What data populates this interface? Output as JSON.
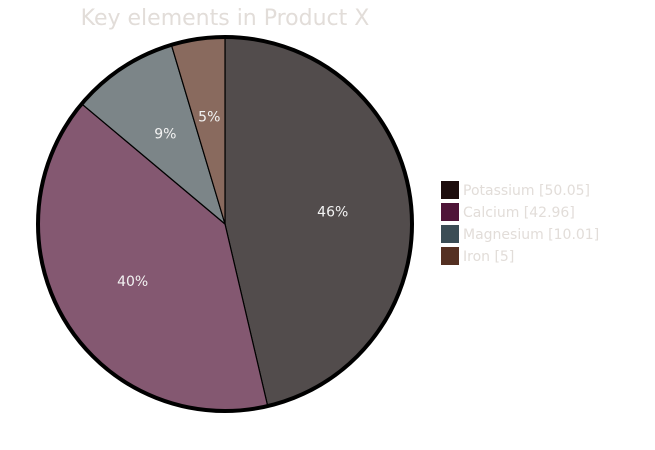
{
  "chart_data": {
    "type": "pie",
    "title": "Key elements in Product X",
    "categories": [
      "Potassium",
      "Calcium",
      "Magnesium",
      "Iron"
    ],
    "values": [
      50.05,
      42.96,
      10.01,
      5
    ],
    "percent_labels": [
      "46%",
      "40%",
      "9%",
      "5%"
    ],
    "legend_labels": [
      "Potassium [50.05]",
      "Calcium [42.96]",
      "Magnesium [10.01]",
      "Iron [5]"
    ],
    "slice_colors": [
      "#524c4c",
      "#845871",
      "#7c8588",
      "#896a5e"
    ],
    "legend_colors": [
      "#1c0c0c",
      "#4e1538",
      "#3b4d55",
      "#543022"
    ],
    "legend_position": "right",
    "start_angle": "top",
    "direction": "clockwise"
  }
}
